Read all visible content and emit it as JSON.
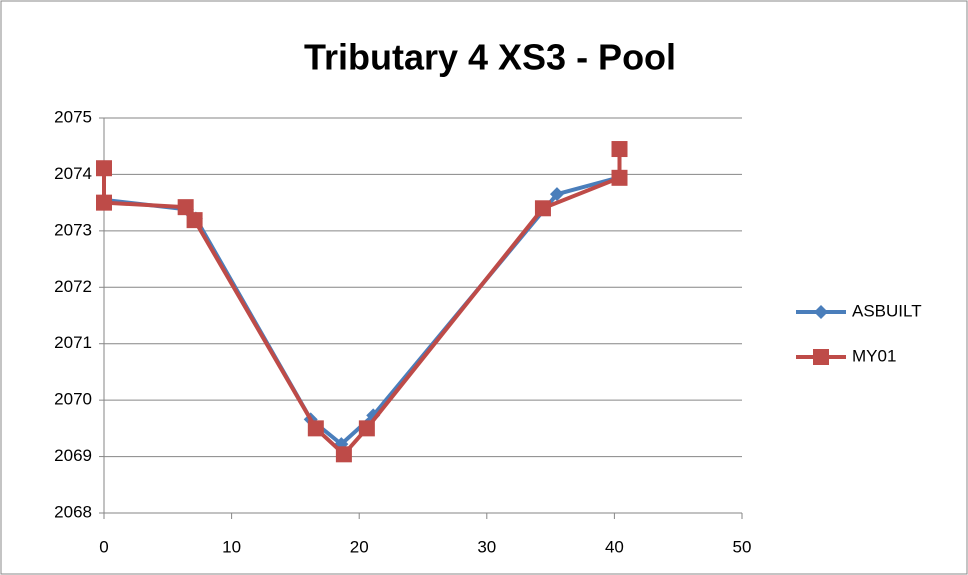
{
  "chart_data": {
    "type": "line",
    "title": "Tributary 4 XS3 - Pool",
    "series": [
      {
        "name": "ASBUILT",
        "color": "#4a7ebb",
        "x": [
          0,
          6.5,
          7.2,
          16.2,
          18.6,
          21.1,
          35.5,
          40.4
        ],
        "values": [
          2073.55,
          2073.38,
          2073.22,
          2069.66,
          2069.22,
          2069.73,
          2073.65,
          2073.95
        ]
      },
      {
        "name": "MY01",
        "color": "#be4b48",
        "x": [
          0,
          0,
          6.4,
          7.1,
          16.6,
          18.8,
          20.6,
          34.4,
          40.4,
          40.4
        ],
        "values": [
          2074.11,
          2073.5,
          2073.42,
          2073.19,
          2069.5,
          2069.04,
          2069.5,
          2073.4,
          2073.94,
          2074.45
        ]
      }
    ],
    "xlim": [
      0,
      50
    ],
    "xticks": [
      0,
      10,
      20,
      30,
      40,
      50
    ],
    "ylim": [
      2068,
      2075
    ],
    "yticks": [
      2068,
      2069,
      2070,
      2071,
      2072,
      2073,
      2074,
      2075
    ],
    "grid": true,
    "legend": "right"
  }
}
